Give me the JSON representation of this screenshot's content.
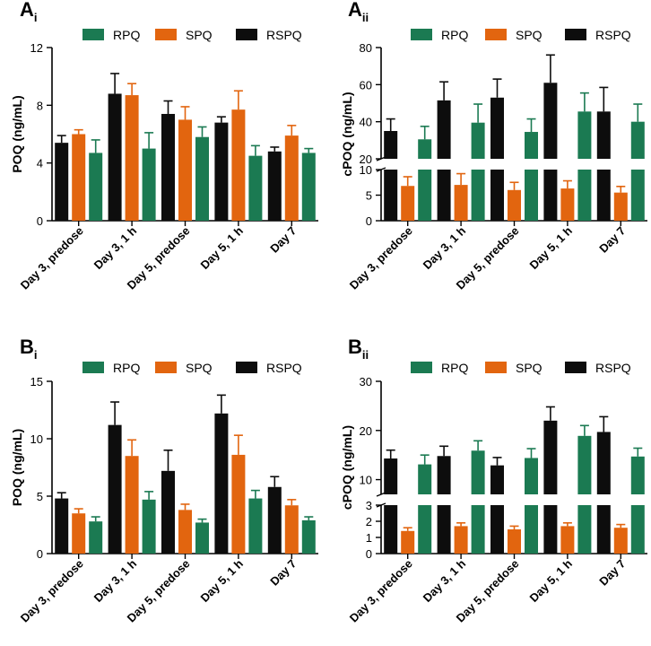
{
  "colors": {
    "RPQ": "#1b7a52",
    "SPQ": "#e2650f",
    "RSPQ": "#0d0d0d",
    "axis": "#000000"
  },
  "chart_data": [
    {
      "id": "Ai",
      "panel_label": "A",
      "panel_sub": "i",
      "type": "bar",
      "ylabel": "POQ (ng/mL)",
      "categories": [
        "Day 3, predose",
        "Day 3, 1 h",
        "Day 5, predose",
        "Day 5, 1 h",
        "Day 7"
      ],
      "legend": [
        {
          "name": "RPQ",
          "color_key": "RPQ"
        },
        {
          "name": "SPQ",
          "color_key": "SPQ"
        },
        {
          "name": "RSPQ",
          "color_key": "RSPQ"
        }
      ],
      "ylim": [
        0,
        12
      ],
      "yticks": [
        0,
        4,
        8,
        12
      ],
      "series": [
        {
          "name": "RSPQ",
          "color_key": "RSPQ",
          "values": [
            5.4,
            8.8,
            7.4,
            6.8,
            4.8
          ],
          "errors": [
            0.5,
            1.4,
            0.9,
            0.4,
            0.3
          ]
        },
        {
          "name": "SPQ",
          "color_key": "SPQ",
          "values": [
            6.0,
            8.7,
            7.0,
            7.7,
            5.9
          ],
          "errors": [
            0.3,
            0.8,
            0.9,
            1.3,
            0.7
          ]
        },
        {
          "name": "RPQ",
          "color_key": "RPQ",
          "values": [
            4.7,
            5.0,
            5.8,
            4.5,
            4.7
          ],
          "errors": [
            0.9,
            1.1,
            0.7,
            0.7,
            0.3
          ]
        }
      ]
    },
    {
      "id": "Aii",
      "panel_label": "A",
      "panel_sub": "ii",
      "type": "bar",
      "ylabel": "cPOQ (ng/mL)",
      "categories": [
        "Day 3, predose",
        "Day 3, 1 h",
        "Day 5, predose",
        "Day 5, 1 h",
        "Day 7"
      ],
      "legend": [
        {
          "name": "RPQ",
          "color_key": "RPQ"
        },
        {
          "name": "SPQ",
          "color_key": "SPQ"
        },
        {
          "name": "RSPQ",
          "color_key": "RSPQ"
        }
      ],
      "broken_axis": true,
      "ylim_lower": [
        0,
        10
      ],
      "yticks_lower": [
        0,
        5,
        10
      ],
      "ylim_upper": [
        20,
        80
      ],
      "yticks_upper": [
        20,
        40,
        60,
        80
      ],
      "series": [
        {
          "name": "RSPQ",
          "color_key": "RSPQ",
          "values": [
            35,
            51.5,
            53,
            61,
            45.5
          ],
          "errors": [
            6.5,
            10,
            10,
            15,
            13
          ]
        },
        {
          "name": "SPQ",
          "color_key": "SPQ",
          "values": [
            6.8,
            7.0,
            6.0,
            6.3,
            5.5
          ],
          "errors": [
            1.8,
            2.2,
            1.5,
            1.5,
            1.2
          ]
        },
        {
          "name": "RPQ",
          "color_key": "RPQ",
          "values": [
            30.5,
            39.5,
            34.5,
            45.5,
            40
          ],
          "errors": [
            7,
            10,
            7,
            10,
            9.5
          ]
        }
      ]
    },
    {
      "id": "Bi",
      "panel_label": "B",
      "panel_sub": "i",
      "type": "bar",
      "ylabel": "POQ (ng/mL)",
      "categories": [
        "Day 3, predose",
        "Day 3, 1 h",
        "Day 5, predose",
        "Day 5, 1 h",
        "Day 7"
      ],
      "legend": [
        {
          "name": "RPQ",
          "color_key": "RPQ"
        },
        {
          "name": "SPQ",
          "color_key": "SPQ"
        },
        {
          "name": "RSPQ",
          "color_key": "RSPQ"
        }
      ],
      "ylim": [
        0,
        15
      ],
      "yticks": [
        0,
        5,
        10,
        15
      ],
      "series": [
        {
          "name": "RSPQ",
          "color_key": "RSPQ",
          "values": [
            4.8,
            11.2,
            7.2,
            12.2,
            5.8
          ],
          "errors": [
            0.5,
            2.0,
            1.8,
            1.6,
            0.9
          ]
        },
        {
          "name": "SPQ",
          "color_key": "SPQ",
          "values": [
            3.5,
            8.5,
            3.8,
            8.6,
            4.2
          ],
          "errors": [
            0.4,
            1.4,
            0.5,
            1.7,
            0.5
          ]
        },
        {
          "name": "RPQ",
          "color_key": "RPQ",
          "values": [
            2.8,
            4.7,
            2.7,
            4.8,
            2.9
          ],
          "errors": [
            0.4,
            0.7,
            0.3,
            0.7,
            0.3
          ]
        }
      ]
    },
    {
      "id": "Bii",
      "panel_label": "B",
      "panel_sub": "ii",
      "type": "bar",
      "ylabel": "cPOQ (ng/mL)",
      "categories": [
        "Day 3, predose",
        "Day 3, 1 h",
        "Day 5, predose",
        "Day 5, 1 h",
        "Day 7"
      ],
      "legend": [
        {
          "name": "RPQ",
          "color_key": "RPQ"
        },
        {
          "name": "SPQ",
          "color_key": "SPQ"
        },
        {
          "name": "RSPQ",
          "color_key": "RSPQ"
        }
      ],
      "broken_axis": true,
      "ylim_lower": [
        0,
        3
      ],
      "yticks_lower": [
        0,
        1,
        2,
        3
      ],
      "ylim_upper": [
        7,
        30
      ],
      "yticks_upper": [
        10,
        20,
        30
      ],
      "series": [
        {
          "name": "RSPQ",
          "color_key": "RSPQ",
          "values": [
            14.3,
            14.8,
            12.9,
            22,
            19.7
          ],
          "errors": [
            1.7,
            2,
            1.6,
            2.8,
            3.1
          ]
        },
        {
          "name": "SPQ",
          "color_key": "SPQ",
          "values": [
            1.4,
            1.7,
            1.5,
            1.7,
            1.6
          ],
          "errors": [
            0.2,
            0.2,
            0.2,
            0.2,
            0.2
          ]
        },
        {
          "name": "RPQ",
          "color_key": "RPQ",
          "values": [
            13.1,
            15.9,
            14.4,
            18.9,
            14.7
          ],
          "errors": [
            1.9,
            2,
            1.9,
            2.1,
            1.7
          ]
        }
      ]
    }
  ]
}
